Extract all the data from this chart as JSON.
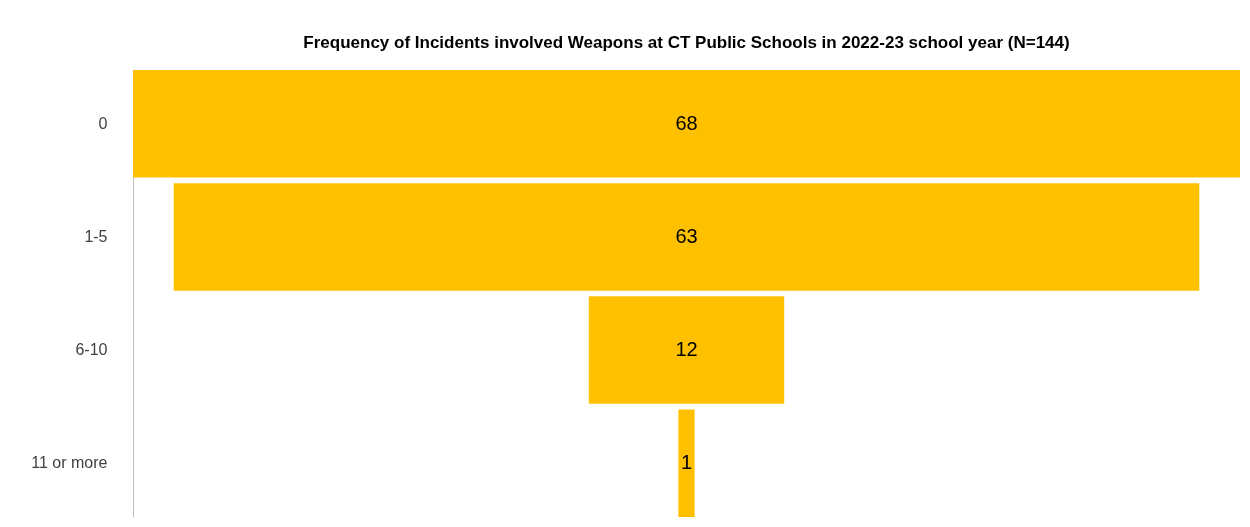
{
  "chart_data": {
    "type": "other",
    "title": "Frequency of Incidents involved Weapons at CT Public Schools in 2022-23 school year (N=144)",
    "categories": [
      "0",
      "1-5",
      "6-10",
      "11 or more"
    ],
    "values": [
      68,
      63,
      12,
      1
    ],
    "color": "#ffc000",
    "data_labels": true
  }
}
